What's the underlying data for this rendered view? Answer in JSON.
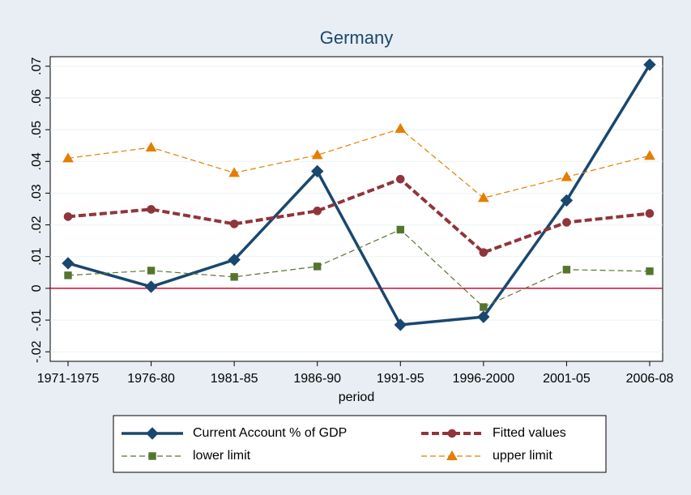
{
  "chart_data": {
    "type": "line",
    "title": "Germany",
    "x_label": "period",
    "categories": [
      "1971-1975",
      "1976-80",
      "1981-85",
      "1986-90",
      "1991-95",
      "1996-2000",
      "2001-05",
      "2006-08"
    ],
    "series": [
      {
        "name": "Current Account % of GDP",
        "color": "#1a476f",
        "marker": "diamond",
        "dash": "solid",
        "values": [
          0.0079,
          0.0005,
          0.009,
          0.0369,
          -0.0115,
          -0.009,
          0.0277,
          0.0705
        ]
      },
      {
        "name": "Fitted values",
        "color": "#90353b",
        "marker": "circle",
        "dash": "dashed",
        "values": [
          0.0226,
          0.0249,
          0.0203,
          0.0244,
          0.0344,
          0.0113,
          0.0208,
          0.0236
        ]
      },
      {
        "name": "lower limit",
        "color": "#55752f",
        "marker": "square",
        "dash": "dashed",
        "values": [
          0.0041,
          0.0056,
          0.0036,
          0.0069,
          0.0185,
          -0.0059,
          0.0059,
          0.0054
        ]
      },
      {
        "name": "upper limit",
        "color": "#e37e00",
        "marker": "triangle",
        "dash": "dashed",
        "values": [
          0.041,
          0.0444,
          0.0364,
          0.042,
          0.0503,
          0.0285,
          0.0351,
          0.0418
        ]
      }
    ],
    "ylim": [
      -0.023,
      0.073
    ],
    "yticks": [
      {
        "value": -0.02,
        "label": "-.02"
      },
      {
        "value": -0.01,
        "label": "-.01"
      },
      0,
      {
        "value": 0.01,
        "label": ".01"
      },
      {
        "value": 0.02,
        "label": ".02"
      },
      {
        "value": 0.03,
        "label": ".03"
      },
      {
        "value": 0.04,
        "label": ".04"
      },
      {
        "value": 0.05,
        "label": ".05"
      },
      {
        "value": 0.06,
        "label": ".06"
      },
      {
        "value": 0.07,
        "label": ".07"
      }
    ],
    "reference_line": {
      "value": 0,
      "color": "#c8102e"
    },
    "grid": true,
    "legend": "bottom"
  }
}
